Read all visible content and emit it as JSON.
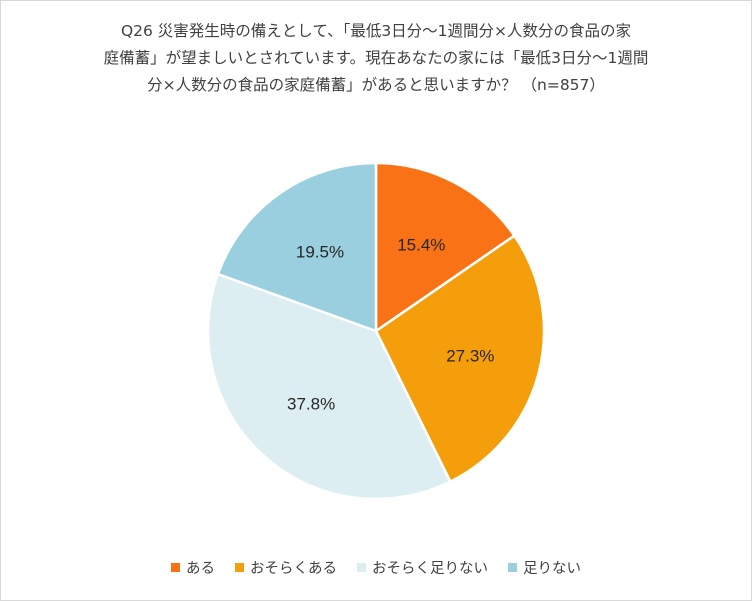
{
  "chart_data": {
    "type": "pie",
    "title_lines": [
      "Q26 災害発生時の備えとして、「最低3日分～1週間分×人数分の食品の家",
      "庭備蓄」が望ましいとされています。現在あなたの家には「最低3日分～1週間",
      "分×人数分の食品の家庭備蓄」があると思いますか？ （n=857）"
    ],
    "categories": [
      "ある",
      "おそらくある",
      "おそらく足りない",
      "足りない"
    ],
    "values": [
      15.4,
      27.3,
      37.8,
      19.5
    ],
    "labels": [
      "15.4%",
      "27.3%",
      "37.8%",
      "19.5%"
    ],
    "colors": [
      "#F97316",
      "#F59E0B",
      "#DDEEF3",
      "#9ACFE0"
    ],
    "legend_position": "bottom",
    "start": "12 o'clock",
    "direction": "clockwise"
  }
}
